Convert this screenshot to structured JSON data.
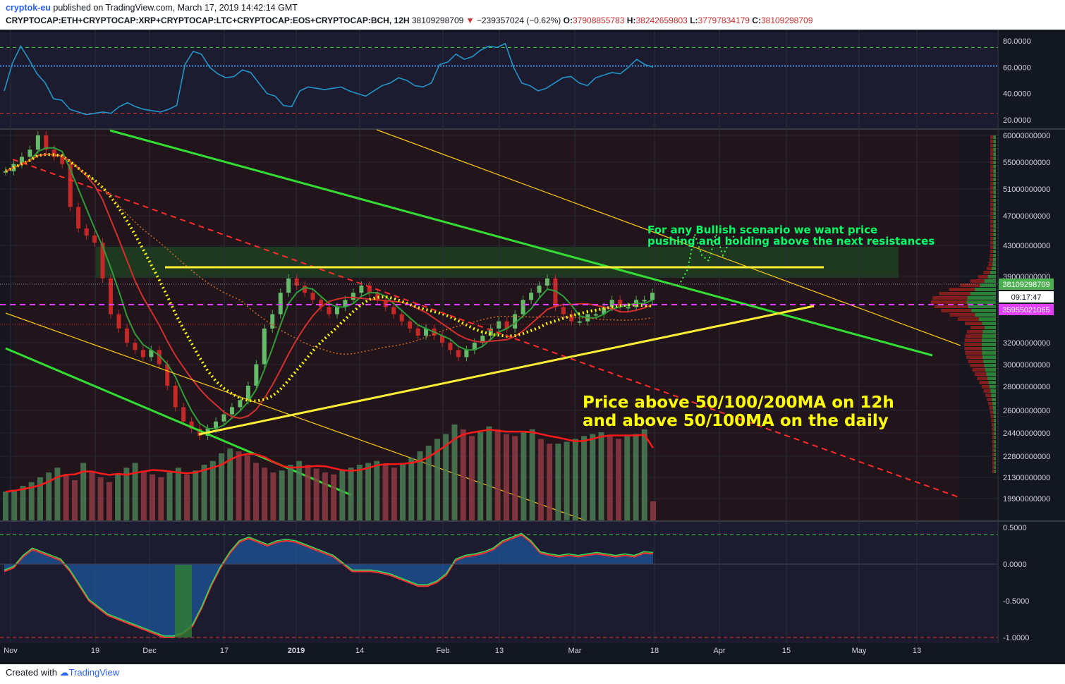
{
  "header": {
    "user": "cryptok-eu",
    "published": " published on TradingView.com, March 17, 2019 14:42:14 GMT",
    "symbol": "CRYPTOCAP:ETH+CRYPTOCAP:XRP+CRYPTOCAP:LTC+CRYPTOCAP:EOS+CRYPTOCAP:BCH, 12H",
    "last": "38109298709",
    "change": "−239357024 (−0.62%)",
    "o_label": "O:",
    "o": "37908855783",
    "h_label": "H:",
    "h": "38242659803",
    "l_label": "L:",
    "l": "37797834179",
    "c_label": "C:",
    "c": "38109298709"
  },
  "annotations": {
    "bullish": "For any Bullish scenario we want price\npushing and holding above the next resistances",
    "ma_note": "Price above 50/100/200MA on 12h\nand above 50/100MA on the daily"
  },
  "price_tags": {
    "last_price": "38109298709",
    "countdown": "09:17:47",
    "magenta_level": "35955021065"
  },
  "footer": {
    "created": "Created with ",
    "brand": "TradingView"
  },
  "colors": {
    "background": "#131722",
    "rsi_line": "#2196c9",
    "bull": "#2e7d32",
    "bear": "#b71c1c",
    "trend_green": "#33dd33",
    "support_yellow": "#ffee33",
    "ma_dotted_yellow": "#ffff00",
    "magenta": "#e040fb",
    "red_dashed": "#ff2b2b",
    "volume_ma": "#ff1a1a",
    "macd_area": "#1e4d8c"
  },
  "chart_data": [
    {
      "type": "line",
      "panel": "rsi",
      "yticks": [
        "80.0000",
        "60.0000",
        "40.0000",
        "20.0000"
      ],
      "ylim": [
        20,
        80
      ],
      "levels": {
        "upper": 75,
        "mid": 61,
        "lower": 25
      },
      "series": [
        {
          "values": [
            42,
            63,
            76,
            66,
            55,
            48,
            36,
            35,
            28,
            26,
            24,
            25,
            26,
            25,
            30,
            33,
            30,
            28,
            27,
            26,
            28,
            31,
            62,
            72,
            70,
            60,
            55,
            52,
            53,
            58,
            56,
            48,
            40,
            38,
            31,
            30,
            42,
            45,
            44,
            43,
            44,
            45,
            42,
            40,
            38,
            42,
            46,
            48,
            52,
            50,
            46,
            45,
            48,
            62,
            64,
            70,
            66,
            68,
            73,
            76,
            75,
            78,
            60,
            48,
            46,
            42,
            44,
            48,
            52,
            53,
            48,
            46,
            52,
            54,
            56,
            55,
            60,
            66,
            62,
            60
          ]
        }
      ]
    },
    {
      "type": "candlestick",
      "panel": "price",
      "x_ticks": [
        "Nov",
        "19",
        "Dec",
        "17",
        "2019",
        "14",
        "Feb",
        "13",
        "Mar",
        "18",
        "Apr",
        "15",
        "May",
        "13"
      ],
      "yticks": [
        "60000000000",
        "55000000000",
        "51000000000",
        "47000000000",
        "43000000000",
        "39000000000",
        "32000000000",
        "30000000000",
        "28000000000",
        "26000000000",
        "24400000000",
        "22800000000",
        "21300000000",
        "19900000000"
      ],
      "close_series": [
        55,
        56,
        57,
        58,
        60,
        58,
        57,
        56,
        50,
        47,
        46,
        45,
        40,
        35,
        33,
        31,
        30,
        29,
        30,
        28,
        25,
        22,
        20,
        19,
        18,
        19,
        20,
        21,
        22,
        23,
        25,
        28,
        33,
        35,
        38,
        40,
        39,
        38,
        37,
        36,
        35,
        36,
        37,
        38,
        39,
        38,
        37,
        36,
        35,
        34,
        33,
        32,
        33,
        32,
        31,
        30,
        29,
        30,
        31,
        32,
        33,
        34,
        33,
        35,
        37,
        38,
        39,
        40,
        36,
        35,
        34,
        34,
        35,
        35,
        36,
        37,
        36,
        36,
        37,
        37,
        38
      ]
    },
    {
      "type": "bar",
      "panel": "volume",
      "values": [
        30,
        32,
        36,
        40,
        45,
        50,
        55,
        48,
        42,
        60,
        50,
        45,
        40,
        48,
        55,
        60,
        52,
        48,
        45,
        50,
        55,
        48,
        52,
        58,
        62,
        70,
        75,
        72,
        68,
        60,
        55,
        50,
        52,
        58,
        62,
        58,
        54,
        50,
        48,
        52,
        55,
        58,
        60,
        62,
        58,
        55,
        60,
        65,
        72,
        78,
        85,
        90,
        100,
        95,
        88,
        92,
        98,
        95,
        90,
        88,
        92,
        95,
        85,
        80,
        80,
        82,
        85,
        88,
        90,
        92,
        88,
        85,
        88,
        90,
        95,
        20
      ]
    },
    {
      "type": "area",
      "panel": "macd",
      "yticks": [
        "0.5000",
        "0.0000",
        "-0.5000",
        "-1.0000"
      ],
      "ylim": [
        -1.0,
        0.5
      ],
      "values": [
        -0.1,
        -0.05,
        0.1,
        0.2,
        0.15,
        0.1,
        0.05,
        -0.1,
        -0.3,
        -0.5,
        -0.6,
        -0.7,
        -0.75,
        -0.8,
        -0.85,
        -0.9,
        -0.95,
        -1.0,
        -1.0,
        -0.95,
        -0.85,
        -0.6,
        -0.3,
        -0.05,
        0.15,
        0.3,
        0.35,
        0.3,
        0.25,
        0.3,
        0.32,
        0.3,
        0.25,
        0.2,
        0.15,
        0.1,
        0.0,
        -0.1,
        -0.1,
        -0.1,
        -0.12,
        -0.15,
        -0.2,
        -0.25,
        -0.3,
        -0.3,
        -0.25,
        -0.15,
        0.05,
        0.1,
        0.12,
        0.15,
        0.2,
        0.3,
        0.35,
        0.4,
        0.3,
        0.15,
        0.12,
        0.1,
        0.12,
        0.1,
        0.12,
        0.14,
        0.12,
        0.1,
        0.12,
        0.1,
        0.15,
        0.14
      ]
    }
  ]
}
